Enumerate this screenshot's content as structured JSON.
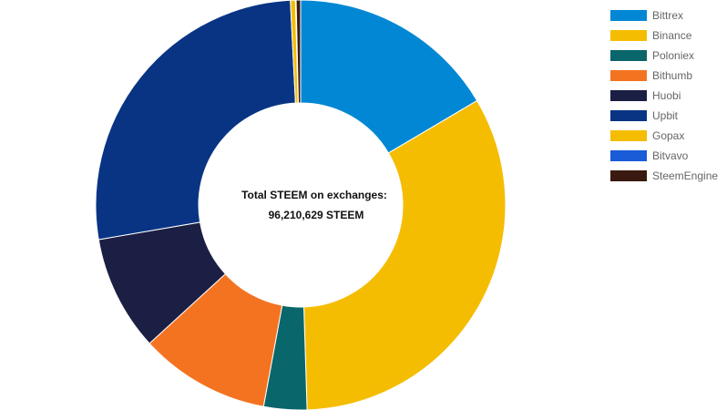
{
  "chart_data": {
    "type": "pie",
    "donut": true,
    "center_label": {
      "line1": "Total STEEM on exchanges:",
      "line2": "96,210,629 STEEM"
    },
    "legend_position": "top-right",
    "series": [
      {
        "name": "Bittrex",
        "value": 16.5,
        "color": "#0287d4"
      },
      {
        "name": "Binance",
        "value": 33.0,
        "color": "#f5bd02"
      },
      {
        "name": "Poloniex",
        "value": 3.4,
        "color": "#09666b"
      },
      {
        "name": "Bithumb",
        "value": 10.3,
        "color": "#f47321"
      },
      {
        "name": "Huobi",
        "value": 9.1,
        "color": "#1c1f44"
      },
      {
        "name": "Upbit",
        "value": 26.9,
        "color": "#093484"
      },
      {
        "name": "Gopax",
        "value": 0.4,
        "color": "#f5bd02"
      },
      {
        "name": "Bitvavo",
        "value": 0.05,
        "color": "#1a5bd8"
      },
      {
        "name": "SteemEngine",
        "value": 0.35,
        "color": "#3a1a10"
      }
    ]
  }
}
